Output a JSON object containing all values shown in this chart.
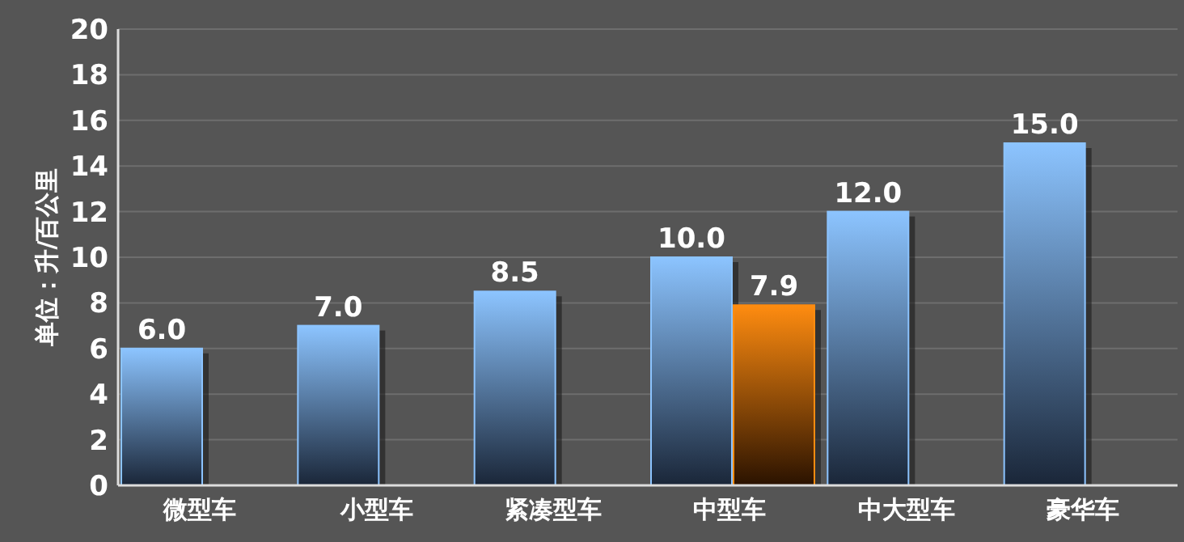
{
  "chart_data": {
    "type": "bar",
    "ylabel": "单位：升/百公里",
    "categories": [
      "微型车",
      "小型车",
      "紧凑型车",
      "中型车",
      "中大型车",
      "豪华车"
    ],
    "series": [
      {
        "color": "#8cc4ff",
        "values": [
          6.0,
          7.0,
          8.5,
          10.0,
          12.0,
          15.0
        ],
        "value_labels": [
          "6.0",
          "7.0",
          "8.5",
          "10.0",
          "12.0",
          "15.0"
        ]
      },
      {
        "color": "#ff8c10",
        "values": [
          null,
          null,
          null,
          7.9,
          null,
          null
        ],
        "value_labels": [
          null,
          null,
          null,
          "7.9",
          null,
          null
        ]
      }
    ],
    "ylim": [
      0,
      20
    ],
    "yticks": [
      0,
      2,
      4,
      6,
      8,
      10,
      12,
      14,
      16,
      18,
      20
    ],
    "grid": "y"
  }
}
